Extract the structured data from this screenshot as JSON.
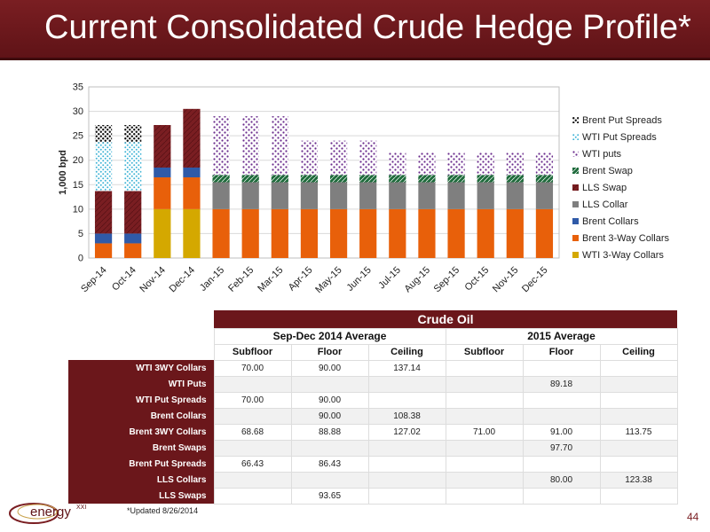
{
  "slide": {
    "title": "Current Consolidated Crude Hedge Profile*",
    "footnote": "*Updated 8/26/2014",
    "page_number": "44",
    "logo_text": "energy",
    "logo_suffix": "XXI"
  },
  "colors": {
    "title_bg": "#6b171b",
    "wti_3way": "#d4a800",
    "brent_3way": "#e8600a",
    "brent_collars": "#2f5aa8",
    "lls_collar": "#7f7f7f",
    "lls_swap": "#7a1e22",
    "brent_swap": "#1f6b3c",
    "wti_puts": "#6a2b8c",
    "wti_put_spreads": "#3fb4d6",
    "brent_put_spreads": "#111111"
  },
  "chart_data": {
    "type": "bar",
    "stacked": true,
    "ylabel": "1,000 bpd",
    "ylim": [
      0,
      35
    ],
    "yticks": [
      0,
      5,
      10,
      15,
      20,
      25,
      30,
      35
    ],
    "grid": true,
    "legend_position": "right",
    "categories": [
      "Sep-14",
      "Oct-14",
      "Nov-14",
      "Dec-14",
      "Jan-15",
      "Feb-15",
      "Mar-15",
      "Apr-15",
      "May-15",
      "Jun-15",
      "Jul-15",
      "Aug-15",
      "Sep-15",
      "Oct-15",
      "Nov-15",
      "Dec-15"
    ],
    "series": [
      {
        "name": "WTI 3-Way Collars",
        "key": "wti_3way",
        "values": [
          0,
          0,
          10,
          10,
          0,
          0,
          0,
          0,
          0,
          0,
          0,
          0,
          0,
          0,
          0,
          0
        ]
      },
      {
        "name": "Brent 3-Way Collars",
        "key": "brent_3way",
        "values": [
          3,
          3,
          6.5,
          6.5,
          10,
          10,
          10,
          10,
          10,
          10,
          10,
          10,
          10,
          10,
          10,
          10
        ]
      },
      {
        "name": "Brent Collars",
        "key": "brent_collars",
        "values": [
          2,
          2,
          2,
          2,
          0,
          0,
          0,
          0,
          0,
          0,
          0,
          0,
          0,
          0,
          0,
          0
        ]
      },
      {
        "name": "LLS Collar",
        "key": "lls_collar",
        "values": [
          0,
          0,
          0,
          0,
          5.5,
          5.5,
          5.5,
          5.5,
          5.5,
          5.5,
          5.5,
          5.5,
          5.5,
          5.5,
          5.5,
          5.5
        ]
      },
      {
        "name": "LLS Swap",
        "key": "lls_swap",
        "values": [
          8.7,
          8.7,
          8.7,
          12,
          0,
          0,
          0,
          0,
          0,
          0,
          0,
          0,
          0,
          0,
          0,
          0
        ]
      },
      {
        "name": "Brent Swap",
        "key": "brent_swap",
        "values": [
          0,
          0,
          0,
          0,
          1.5,
          1.5,
          1.5,
          1.5,
          1.5,
          1.5,
          1.5,
          1.5,
          1.5,
          1.5,
          1.5,
          1.5
        ]
      },
      {
        "name": "WTI puts",
        "key": "wti_puts",
        "values": [
          0,
          0,
          0,
          0,
          12,
          12,
          12,
          7,
          7,
          7,
          4.5,
          4.5,
          4.5,
          4.5,
          4.5,
          4.5
        ]
      },
      {
        "name": "WTI Put Spreads",
        "key": "wti_put_spreads",
        "values": [
          10,
          10,
          0,
          0,
          0,
          0,
          0,
          0,
          0,
          0,
          0,
          0,
          0,
          0,
          0,
          0
        ]
      },
      {
        "name": "Brent Put Spreads",
        "key": "brent_put_spreads",
        "values": [
          3.5,
          3.5,
          0,
          0,
          0,
          0,
          0,
          0,
          0,
          0,
          0,
          0,
          0,
          0,
          0,
          0
        ]
      }
    ],
    "legend_order": [
      "Brent Put Spreads",
      "WTI Put Spreads",
      "WTI puts",
      "Brent Swap",
      "LLS Swap",
      "LLS Collar",
      "Brent Collars",
      "Brent 3-Way Collars",
      "WTI 3-Way Collars"
    ]
  },
  "table": {
    "header": "Crude Oil",
    "group_2014": "Sep-Dec 2014 Average",
    "group_2015": "2015 Average",
    "columns": [
      "Subfloor",
      "Floor",
      "Ceiling",
      "Subfloor",
      "Floor",
      "Ceiling"
    ],
    "rows": [
      {
        "label": "WTI 3WY Collars",
        "values": [
          "70.00",
          "90.00",
          "137.14",
          "",
          "",
          ""
        ]
      },
      {
        "label": "WTI Puts",
        "values": [
          "",
          "",
          "",
          "",
          "89.18",
          ""
        ]
      },
      {
        "label": "WTI Put Spreads",
        "values": [
          "70.00",
          "90.00",
          "",
          "",
          "",
          ""
        ]
      },
      {
        "label": "Brent Collars",
        "values": [
          "",
          "90.00",
          "108.38",
          "",
          "",
          ""
        ]
      },
      {
        "label": "Brent 3WY Collars",
        "values": [
          "68.68",
          "88.88",
          "127.02",
          "71.00",
          "91.00",
          "113.75"
        ]
      },
      {
        "label": "Brent Swaps",
        "values": [
          "",
          "",
          "",
          "",
          "97.70",
          ""
        ]
      },
      {
        "label": "Brent Put Spreads",
        "values": [
          "66.43",
          "86.43",
          "",
          "",
          "",
          ""
        ]
      },
      {
        "label": "LLS Collars",
        "values": [
          "",
          "",
          "",
          "",
          "80.00",
          "123.38"
        ]
      },
      {
        "label": "LLS Swaps",
        "values": [
          "",
          "93.65",
          "",
          "",
          "",
          ""
        ]
      }
    ]
  }
}
